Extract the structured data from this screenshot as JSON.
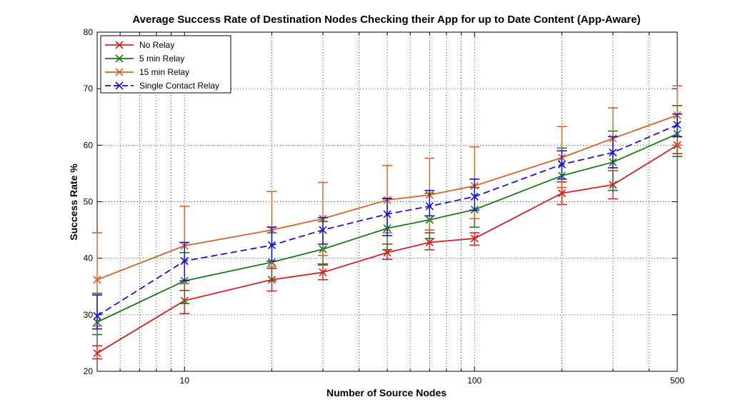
{
  "chart_data": {
    "type": "line",
    "title": "Average Success Rate of Destination Nodes Checking their App for up to Date Content (App-Aware)",
    "xlabel": "Number of Source Nodes",
    "ylabel": "Success Rate %",
    "xscale": "log",
    "xlim": [
      5,
      500
    ],
    "ylim": [
      20,
      80
    ],
    "x_ticks": [
      10,
      100,
      500
    ],
    "x_tick_labels": [
      "10",
      "100",
      "500"
    ],
    "y_ticks": [
      20,
      30,
      40,
      50,
      60,
      70,
      80
    ],
    "y_tick_labels": [
      "20",
      "30",
      "40",
      "50",
      "60",
      "70",
      "80"
    ],
    "grid": true,
    "legend_position": "top-left",
    "x": [
      5,
      10,
      20,
      30,
      50,
      70,
      100,
      200,
      300,
      500
    ],
    "series": [
      {
        "name": "No Relay",
        "color": "#d62020",
        "dash": "solid",
        "values": [
          23.2,
          32.5,
          36.2,
          37.5,
          41.0,
          42.8,
          43.5,
          51.5,
          53.0,
          60.0
        ],
        "err_low": [
          22.2,
          30.2,
          34.2,
          36.2,
          39.8,
          41.5,
          42.3,
          49.5,
          50.5,
          58.5
        ],
        "err_high": [
          24.5,
          34.3,
          38.2,
          39.0,
          42.5,
          44.5,
          44.5,
          53.5,
          55.5,
          61.5
        ]
      },
      {
        "name": "5 min Relay",
        "color": "#1a7a1a",
        "dash": "solid",
        "values": [
          28.7,
          36.0,
          39.3,
          41.6,
          45.3,
          46.8,
          48.6,
          54.6,
          57.0,
          62.0
        ],
        "err_low": [
          26.5,
          32.0,
          36.0,
          38.8,
          41.5,
          43.5,
          45.5,
          52.5,
          52.0,
          58.0
        ],
        "err_high": [
          33.8,
          41.0,
          44.5,
          46.5,
          50.5,
          51.5,
          52.5,
          59.5,
          62.5,
          67.0
        ]
      },
      {
        "name": "15 min Relay",
        "color": "#d4622a",
        "dash": "solid",
        "values": [
          36.2,
          42.2,
          45.0,
          47.0,
          50.3,
          51.2,
          52.8,
          57.8,
          61.2,
          65.3
        ],
        "err_low": [
          28.0,
          35.5,
          38.5,
          40.5,
          44.5,
          45.0,
          47.0,
          52.5,
          55.5,
          60.0
        ],
        "err_high": [
          44.5,
          49.2,
          51.8,
          53.4,
          56.4,
          57.7,
          59.7,
          63.3,
          66.6,
          70.5
        ]
      },
      {
        "name": "Single Contact Relay",
        "color": "#1414d2",
        "dash": "dashed",
        "values": [
          29.8,
          39.5,
          42.3,
          45.0,
          47.8,
          49.2,
          50.9,
          56.6,
          58.7,
          63.6
        ],
        "err_low": [
          27.5,
          36.0,
          39.5,
          42.5,
          44.0,
          47.5,
          48.5,
          54.0,
          56.0,
          61.5
        ],
        "err_high": [
          33.5,
          42.8,
          45.5,
          47.2,
          50.6,
          52.0,
          54.0,
          59.0,
          61.5,
          65.5
        ]
      }
    ]
  }
}
